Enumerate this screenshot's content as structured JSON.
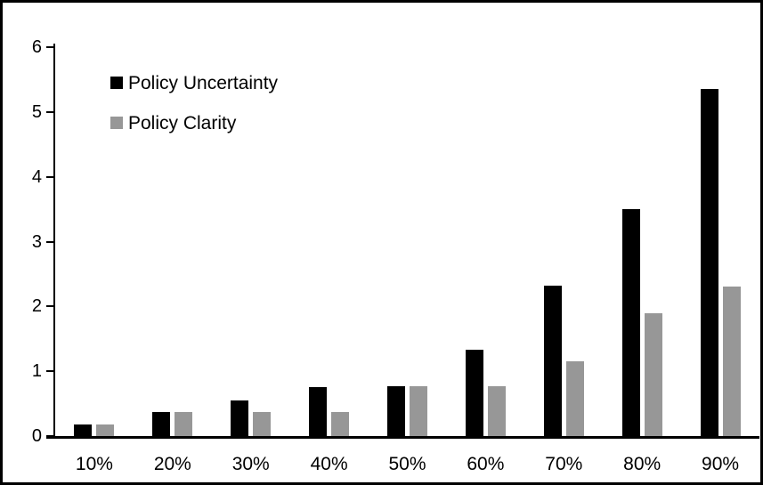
{
  "window": {
    "background": "#ffffff",
    "frame_border_color": "#000000",
    "axis_color": "#000000",
    "text_color": "#000000"
  },
  "chart_data": {
    "type": "bar",
    "title": "",
    "xlabel": "",
    "ylabel": "",
    "categories": [
      "10%",
      "20%",
      "30%",
      "40%",
      "50%",
      "60%",
      "70%",
      "80%",
      "90%"
    ],
    "series": [
      {
        "name": "Policy Uncertainty",
        "color": "#000000",
        "values": [
          0.18,
          0.37,
          0.55,
          0.75,
          0.77,
          1.33,
          2.32,
          3.5,
          5.35
        ]
      },
      {
        "name": "Policy Clarity",
        "color": "#979797",
        "values": [
          0.18,
          0.37,
          0.37,
          0.37,
          0.77,
          0.77,
          1.15,
          1.9,
          2.3
        ]
      }
    ],
    "ylim": [
      0,
      6
    ],
    "yticks": [
      0,
      1,
      2,
      3,
      4,
      5,
      6
    ],
    "grid": false,
    "legend_position": "top-left"
  }
}
